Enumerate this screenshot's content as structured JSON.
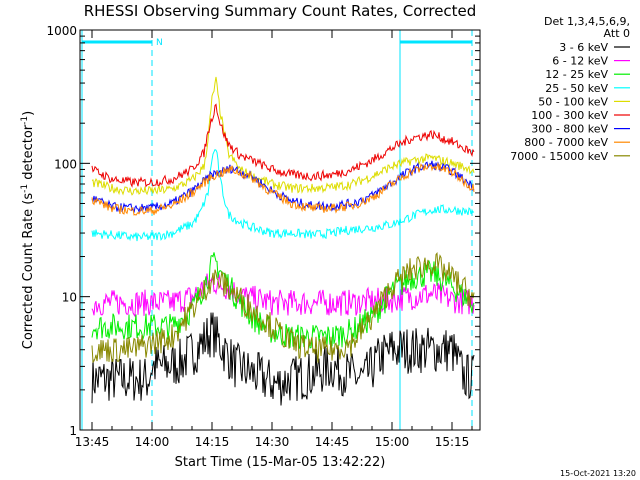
{
  "chart_data": {
    "type": "line",
    "title": "RHESSI Observing Summary Count Rates, Corrected",
    "xlabel": "Start Time (15-Mar-05 13:42:22)",
    "ylabel": "Corrected Count Rate (s",
    "ylabel_sup1": "-1",
    "ylabel_mid": " detector",
    "ylabel_sup2": "-1",
    "ylabel_end": ")",
    "yscale": "log",
    "ylim": [
      1,
      1000
    ],
    "xlim_minutes": [
      -3,
      97
    ],
    "x_ticks": [
      {
        "label": "13:45",
        "min": 0
      },
      {
        "label": "14:00",
        "min": 15
      },
      {
        "label": "14:15",
        "min": 30
      },
      {
        "label": "14:30",
        "min": 45
      },
      {
        "label": "14:45",
        "min": 60
      },
      {
        "label": "15:00",
        "min": 75
      },
      {
        "label": "15:15",
        "min": 90
      }
    ],
    "y_ticks": [
      {
        "label": "1",
        "value": 1
      },
      {
        "label": "10",
        "value": 10
      },
      {
        "label": "100",
        "value": 100
      },
      {
        "label": "1000",
        "value": 1000
      }
    ],
    "legend_header": [
      "Det 1,3,4,5,6,9,",
      "Att 0"
    ],
    "legend_position": "right",
    "footer_timestamp": "15-Oct-2021 13:20",
    "night_marker": "N",
    "series": [
      {
        "name": "3 - 6 keV",
        "color": "#000000",
        "x": [
          0,
          5,
          10,
          14,
          15,
          18,
          22,
          26,
          30,
          33,
          36,
          42,
          46,
          50,
          55,
          60,
          64,
          68,
          72,
          75,
          80,
          85,
          90,
          93,
          95
        ],
        "y": [
          2.4,
          2.4,
          2.4,
          2.4,
          3,
          3,
          3.2,
          4,
          5.5,
          4,
          3,
          2.5,
          2.2,
          2.4,
          2.6,
          3,
          2.6,
          2.4,
          3.5,
          4,
          4,
          4,
          4,
          2.5,
          2.5
        ]
      },
      {
        "name": "6 - 12 keV",
        "color": "#ff00ff",
        "x": [
          0,
          10,
          20,
          25,
          30,
          33,
          38,
          45,
          55,
          65,
          75,
          80,
          85,
          90,
          95
        ],
        "y": [
          9,
          9,
          9,
          10,
          13,
          12,
          10,
          9,
          9,
          9,
          9.5,
          10,
          10.5,
          9.5,
          9
        ]
      },
      {
        "name": "12 - 25 keV",
        "color": "#00ee00",
        "x": [
          0,
          10,
          15,
          20,
          25,
          28,
          30,
          31,
          33,
          36,
          40,
          45,
          50,
          55,
          60,
          65,
          70,
          75,
          80,
          85,
          90,
          95
        ],
        "y": [
          6,
          6,
          6,
          6,
          8,
          12,
          17,
          18,
          14,
          10,
          7,
          5.5,
          5,
          5,
          5,
          5.5,
          7,
          11,
          14,
          15,
          12,
          9
        ]
      },
      {
        "name": "25 - 50 keV",
        "color": "#00ffff",
        "x": [
          0,
          5,
          10,
          15,
          20,
          25,
          27,
          29,
          30,
          31,
          32,
          34,
          37,
          40,
          45,
          50,
          55,
          60,
          65,
          70,
          75,
          80,
          85,
          90,
          95
        ],
        "y": [
          30,
          29,
          28,
          28,
          30,
          35,
          42,
          60,
          110,
          130,
          75,
          42,
          36,
          33,
          30,
          30,
          29,
          30,
          32,
          33,
          35,
          40,
          45,
          45,
          43
        ]
      },
      {
        "name": "50 - 100 keV",
        "color": "#dddd00",
        "x": [
          0,
          5,
          10,
          15,
          20,
          25,
          28,
          29,
          30,
          31,
          32,
          34,
          37,
          40,
          45,
          50,
          55,
          60,
          65,
          70,
          75,
          80,
          85,
          90,
          95
        ],
        "y": [
          72,
          65,
          62,
          62,
          64,
          75,
          95,
          150,
          300,
          420,
          250,
          120,
          90,
          80,
          70,
          65,
          65,
          66,
          70,
          80,
          95,
          105,
          110,
          100,
          90
        ]
      },
      {
        "name": "100 - 300 keV",
        "color": "#ee0000",
        "x": [
          0,
          5,
          10,
          15,
          20,
          25,
          28,
          29,
          30,
          31,
          32,
          34,
          37,
          40,
          45,
          50,
          55,
          60,
          65,
          70,
          75,
          80,
          85,
          90,
          95
        ],
        "y": [
          90,
          76,
          72,
          72,
          76,
          90,
          120,
          170,
          220,
          280,
          200,
          140,
          115,
          105,
          90,
          82,
          80,
          82,
          90,
          105,
          130,
          155,
          165,
          145,
          120
        ]
      },
      {
        "name": "300 - 800 keV",
        "color": "#0000ff",
        "x": [
          0,
          5,
          10,
          15,
          20,
          25,
          30,
          35,
          40,
          45,
          50,
          55,
          60,
          65,
          70,
          75,
          80,
          85,
          90,
          95
        ],
        "y": [
          55,
          47,
          46,
          46,
          50,
          62,
          82,
          92,
          80,
          62,
          52,
          48,
          48,
          50,
          57,
          72,
          90,
          98,
          88,
          68
        ]
      },
      {
        "name": "800 - 7000 keV",
        "color": "#ff8800",
        "x": [
          0,
          5,
          10,
          15,
          20,
          25,
          30,
          35,
          40,
          45,
          50,
          55,
          60,
          65,
          70,
          75,
          80,
          85,
          90,
          95
        ],
        "y": [
          54,
          46,
          44,
          44,
          48,
          60,
          80,
          90,
          78,
          60,
          50,
          46,
          46,
          48,
          55,
          70,
          88,
          96,
          86,
          66
        ]
      },
      {
        "name": "7000 - 15000 keV",
        "color": "#888800",
        "x": [
          0,
          5,
          10,
          15,
          20,
          25,
          28,
          30,
          32,
          35,
          40,
          45,
          50,
          55,
          60,
          65,
          70,
          75,
          80,
          85,
          90,
          95
        ],
        "y": [
          4,
          4,
          4,
          4.5,
          5,
          8,
          11,
          14,
          13,
          11,
          8,
          6,
          4.5,
          4,
          4,
          4.5,
          7,
          12,
          16,
          18,
          14,
          10
        ]
      }
    ]
  }
}
